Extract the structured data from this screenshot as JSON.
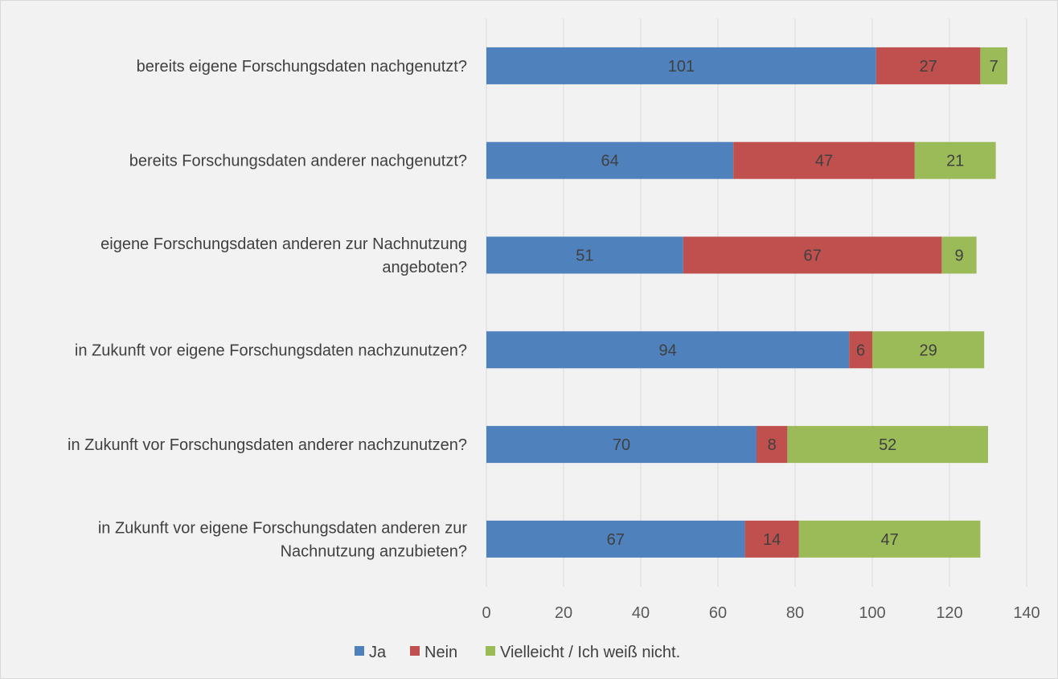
{
  "chart_data": {
    "type": "bar",
    "orientation": "horizontal",
    "stacked": true,
    "title": "",
    "xlabel": "",
    "ylabel": "",
    "xlim": [
      0,
      140
    ],
    "ticks": [
      0,
      20,
      40,
      60,
      80,
      100,
      120,
      140
    ],
    "grid": true,
    "legend_position": "bottom",
    "categories": [
      [
        "bereits eigene Forschungsdaten nachgenutzt?"
      ],
      [
        "bereits Forschungsdaten anderer nachgenutzt?"
      ],
      [
        "eigene Forschungsdaten anderen zur Nachnutzung",
        "angeboten?"
      ],
      [
        "in Zukunft vor eigene Forschungsdaten nachzunutzen?"
      ],
      [
        "in Zukunft vor Forschungsdaten anderer nachzunutzen?"
      ],
      [
        "in Zukunft vor eigene Forschungsdaten anderen zur",
        "Nachnutzung anzubieten?"
      ]
    ],
    "series": [
      {
        "name": "Ja",
        "color": "#4f81bd",
        "values": [
          101,
          64,
          51,
          94,
          70,
          67
        ]
      },
      {
        "name": "Nein",
        "color": "#c0504d",
        "values": [
          27,
          47,
          67,
          6,
          8,
          14
        ]
      },
      {
        "name": "Vielleicht / Ich weiß nicht.",
        "color": "#9bbb59",
        "values": [
          7,
          21,
          9,
          29,
          52,
          47
        ]
      }
    ]
  }
}
